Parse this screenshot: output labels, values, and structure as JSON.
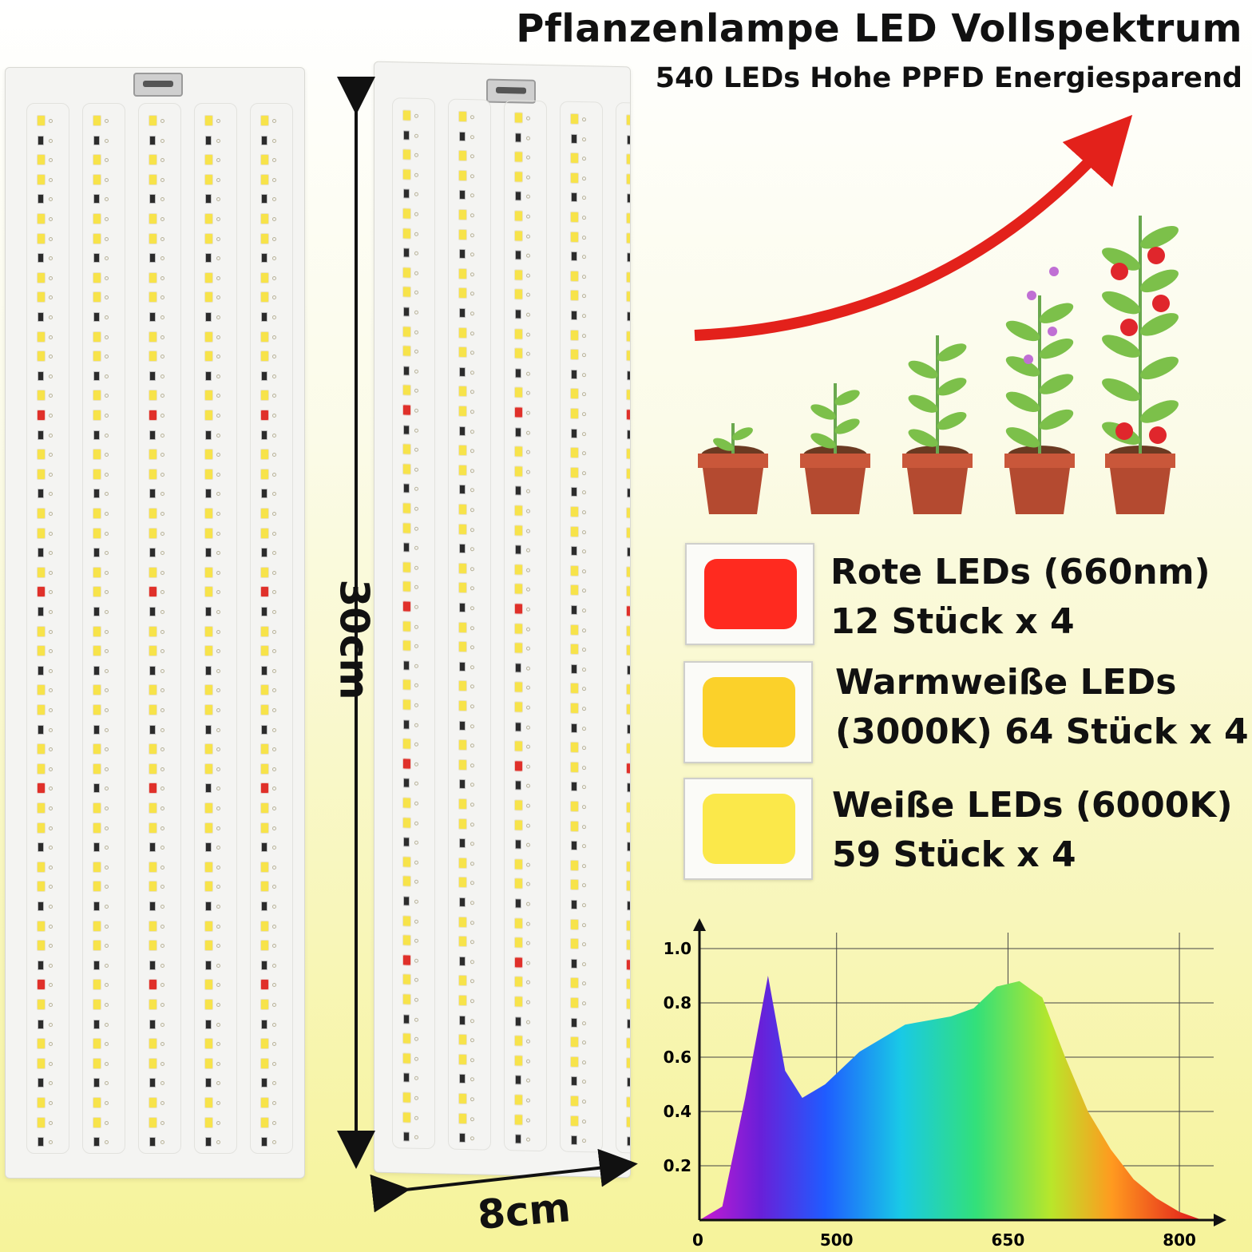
{
  "header": {
    "title": "Pflanzenlampe LED Vollspektrum",
    "subtitle": "540 LEDs Hohe PPFD Energiesparend"
  },
  "dimensions": {
    "height": "30cm",
    "width": "8cm"
  },
  "led_types": [
    {
      "line1": "Rote LEDs (660nm)",
      "line2": "12 Stück x 4",
      "color": "#ff2a1f"
    },
    {
      "line1": "Warmweiße LEDs",
      "line2": "(3000K) 64 Stück x 4",
      "color": "#fbd12a"
    },
    {
      "line1": "Weiße LEDs (6000K)",
      "line2": "59 Stück x 4",
      "color": "#fbe84a"
    }
  ],
  "chart_data": {
    "type": "area",
    "x_ticks": [
      "0",
      "500",
      "650",
      "800"
    ],
    "y_ticks": [
      "0.2",
      "0.4",
      "0.6",
      "0.8",
      "1.0"
    ],
    "ylim": [
      0,
      1.0
    ],
    "grid": true,
    "points": [
      [
        380,
        0.0
      ],
      [
        400,
        0.05
      ],
      [
        420,
        0.45
      ],
      [
        440,
        0.9
      ],
      [
        455,
        0.55
      ],
      [
        470,
        0.45
      ],
      [
        490,
        0.5
      ],
      [
        520,
        0.62
      ],
      [
        560,
        0.72
      ],
      [
        600,
        0.75
      ],
      [
        620,
        0.78
      ],
      [
        640,
        0.86
      ],
      [
        660,
        0.88
      ],
      [
        680,
        0.82
      ],
      [
        700,
        0.6
      ],
      [
        720,
        0.4
      ],
      [
        740,
        0.26
      ],
      [
        760,
        0.15
      ],
      [
        780,
        0.08
      ],
      [
        800,
        0.03
      ],
      [
        820,
        0.0
      ]
    ]
  }
}
